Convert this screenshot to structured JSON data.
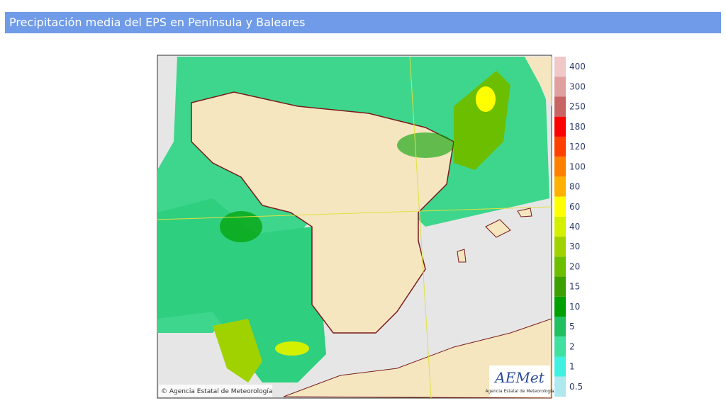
{
  "header": {
    "title": "Precipitación media del EPS en Península y Baleares"
  },
  "map": {
    "credit": "© Agencia Estatal de Meteorología",
    "logo": "AEMet",
    "logo_caption": "Agencia Estatal de Meteorología"
  },
  "legend": {
    "levels": [
      {
        "value": 400,
        "color": "#f0c8c8"
      },
      {
        "value": 300,
        "color": "#e0a0a0"
      },
      {
        "value": 250,
        "color": "#c86464"
      },
      {
        "value": 180,
        "color": "#ff0000"
      },
      {
        "value": 120,
        "color": "#ff4000"
      },
      {
        "value": 100,
        "color": "#ff8000"
      },
      {
        "value": 80,
        "color": "#ffb000"
      },
      {
        "value": 60,
        "color": "#ffff00"
      },
      {
        "value": 40,
        "color": "#d2f000"
      },
      {
        "value": 30,
        "color": "#a0d200"
      },
      {
        "value": 20,
        "color": "#6cbe00"
      },
      {
        "value": 15,
        "color": "#3ca000"
      },
      {
        "value": 10,
        "color": "#00a000"
      },
      {
        "value": 5,
        "color": "#20c060"
      },
      {
        "value": 2,
        "color": "#40e0a0"
      },
      {
        "value": 1,
        "color": "#40f0e0"
      },
      {
        "value": 0.5,
        "color": "#b0e8f0"
      }
    ]
  }
}
